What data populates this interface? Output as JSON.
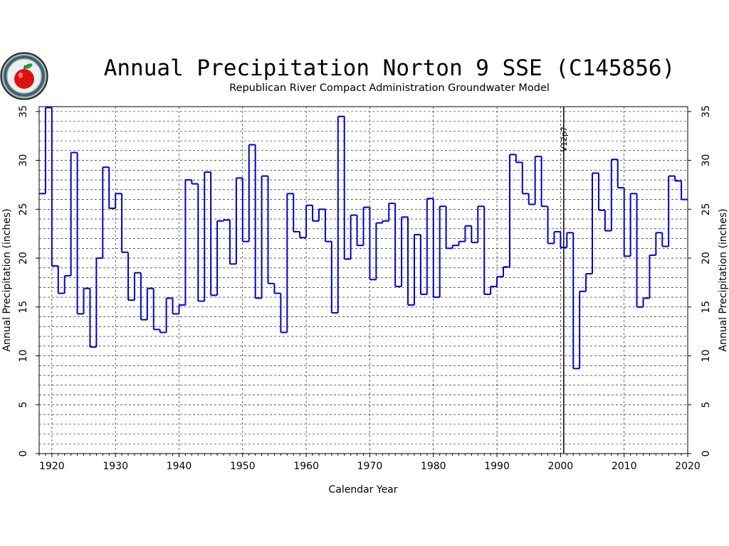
{
  "chart_data": {
    "type": "step",
    "title": "Annual Precipitation Norton 9 SSE (C145856)",
    "subtitle": "Republican River Compact Administration Groundwater Model",
    "xlabel": "Calendar Year",
    "ylabel": "Annual Precipitation (inches)",
    "xlim": [
      1918,
      2020
    ],
    "ylim": [
      0,
      35.5
    ],
    "x_ticks": [
      1920,
      1930,
      1940,
      1950,
      1960,
      1970,
      1980,
      1990,
      2000,
      2010,
      2020
    ],
    "y_ticks": [
      0,
      5,
      10,
      15,
      20,
      25,
      30,
      35
    ],
    "grid": true,
    "annotation": {
      "text": "V12p7",
      "x": 2000.5
    },
    "logo": "apple-seal-logo",
    "series_color": "#0000cc",
    "x": [
      1918,
      1919,
      1920,
      1921,
      1922,
      1923,
      1924,
      1925,
      1926,
      1927,
      1928,
      1929,
      1930,
      1931,
      1932,
      1933,
      1934,
      1935,
      1936,
      1937,
      1938,
      1939,
      1940,
      1941,
      1942,
      1943,
      1944,
      1945,
      1946,
      1947,
      1948,
      1949,
      1950,
      1951,
      1952,
      1953,
      1954,
      1955,
      1956,
      1957,
      1958,
      1959,
      1960,
      1961,
      1962,
      1963,
      1964,
      1965,
      1966,
      1967,
      1968,
      1969,
      1970,
      1971,
      1972,
      1973,
      1974,
      1975,
      1976,
      1977,
      1978,
      1979,
      1980,
      1981,
      1982,
      1983,
      1984,
      1985,
      1986,
      1987,
      1988,
      1989,
      1990,
      1991,
      1992,
      1993,
      1994,
      1995,
      1996,
      1997,
      1998,
      1999,
      2000,
      2001,
      2002,
      2003,
      2004,
      2005,
      2006,
      2007,
      2008,
      2009,
      2010,
      2011,
      2012,
      2013,
      2014,
      2015,
      2016,
      2017,
      2018,
      2019
    ],
    "values": [
      26.6,
      35.4,
      19.2,
      16.4,
      18.2,
      30.8,
      14.3,
      16.9,
      10.9,
      20.0,
      29.3,
      25.1,
      26.6,
      20.6,
      15.7,
      18.5,
      13.7,
      16.9,
      12.7,
      12.4,
      15.9,
      14.3,
      15.2,
      28.0,
      27.6,
      15.6,
      28.8,
      16.2,
      23.8,
      23.9,
      19.4,
      28.2,
      21.7,
      31.6,
      15.9,
      28.4,
      17.4,
      16.4,
      12.4,
      26.6,
      22.7,
      22.1,
      25.4,
      23.8,
      25.0,
      21.7,
      14.4,
      34.5,
      19.9,
      24.4,
      21.3,
      25.2,
      17.8,
      23.6,
      23.8,
      25.6,
      17.1,
      24.2,
      15.2,
      22.4,
      16.3,
      26.1,
      16.0,
      25.3,
      21.0,
      21.3,
      21.7,
      23.3,
      21.6,
      25.3,
      16.3,
      17.1,
      18.1,
      19.1,
      30.6,
      29.8,
      26.6,
      25.5,
      30.4,
      25.3,
      21.5,
      22.7,
      21.1,
      22.6,
      8.7,
      16.6,
      18.4,
      28.7,
      24.9,
      22.8,
      30.1,
      27.2,
      20.2,
      26.6,
      15.0,
      15.9,
      20.3,
      22.6,
      21.2,
      28.4,
      27.9,
      26.0
    ]
  }
}
